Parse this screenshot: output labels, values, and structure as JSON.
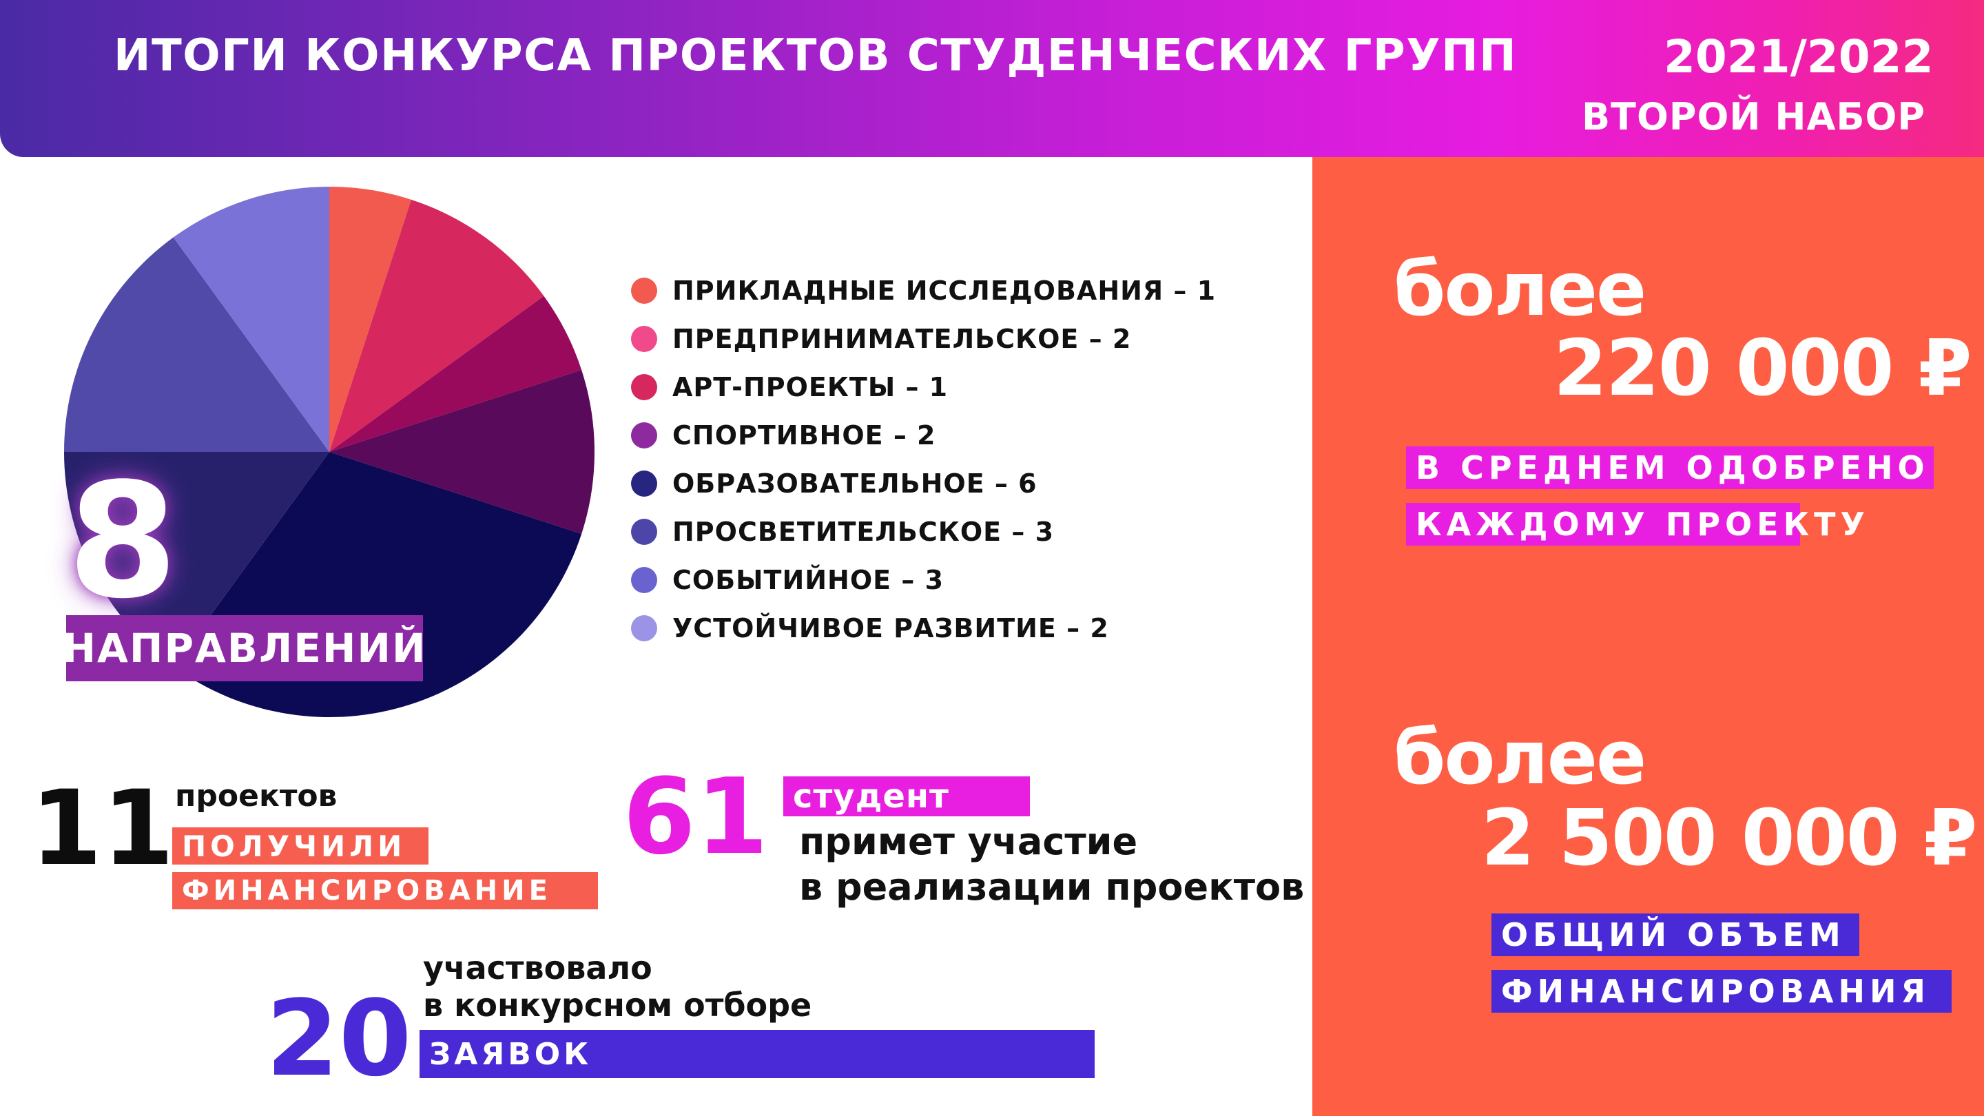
{
  "header": {
    "title": "ИТОГИ КОНКУРСА ПРОЕКТОВ СТУДЕНЧЕСКИХ ГРУПП",
    "year": "2021/2022",
    "round": "ВТОРОЙ НАБОР"
  },
  "colors": {
    "panel": "#fe5e43",
    "magenta": "#e81fe0",
    "indigo": "#4a2ad6",
    "purple": "#8c2aa6"
  },
  "chart_data": {
    "type": "pie",
    "categories": [
      "ПРИКЛАДНЫЕ ИССЛЕДОВАНИЯ",
      "ПРЕДПРИНИМАТЕЛЬСКОЕ",
      "АРТ-ПРОЕКТЫ",
      "СПОРТИВНОЕ",
      "ОБРАЗОВАТЕЛЬНОЕ",
      "ПРОСВЕТИТЕЛЬСКОЕ",
      "СОБЫТИЙНОЕ",
      "УСТОЙЧИВОЕ РАЗВИТИЕ"
    ],
    "values": [
      1,
      2,
      1,
      2,
      6,
      3,
      3,
      2
    ],
    "legend_labels": [
      "ПРИКЛАДНЫЕ ИССЛЕДОВАНИЯ – 1",
      "ПРЕДПРИНИМАТЕЛЬСКОЕ – 2",
      "АРТ-ПРОЕКТЫ – 1",
      "СПОРТИВНОЕ – 2",
      "ОБРАЗОВАТЕЛЬНОЕ – 6",
      "ПРОСВЕТИТЕЛЬСКОЕ – 3",
      "СОБЫТИЙНОЕ – 3",
      "УСТОЙЧИВОЕ РАЗВИТИЕ – 2"
    ],
    "legend_colors": [
      "#f25a50",
      "#f04a8a",
      "#d6285e",
      "#8e2aa0",
      "#262680",
      "#4d46a8",
      "#6a62cf",
      "#9a93e6"
    ],
    "slice_colors": [
      "#f25a50",
      "#d6285e",
      "#9a0a5c",
      "#5a0a5a",
      "#0c0a55",
      "#27216b",
      "#514aa8",
      "#7a72d6"
    ],
    "legend_position": "right"
  },
  "directions": {
    "count": "8",
    "label": "НАПРАВЛЕНИЙ"
  },
  "projects": {
    "count": "11",
    "word": "проектов",
    "tag1": "ПОЛУЧИЛИ",
    "tag2": "ФИНАНСИРОВАНИЕ"
  },
  "students": {
    "count": "61",
    "tag": "студент",
    "line1": "примет участие",
    "line2": "в реализации проектов"
  },
  "applications": {
    "count": "20",
    "line1": "участвовало",
    "line2": "в конкурсном отборе",
    "tag": "ЗАЯВОК"
  },
  "avg_funding": {
    "prefix": "более",
    "amount": "220 000 ₽",
    "tag1": "В СРЕДНЕМ ОДОБРЕНО",
    "tag2": "КАЖДОМУ ПРОЕКТУ"
  },
  "total_funding": {
    "prefix": "более",
    "amount": "2 500 000 ₽",
    "tag1": "ОБЩИЙ ОБЪЕМ",
    "tag2": "ФИНАНСИРОВАНИЯ"
  }
}
